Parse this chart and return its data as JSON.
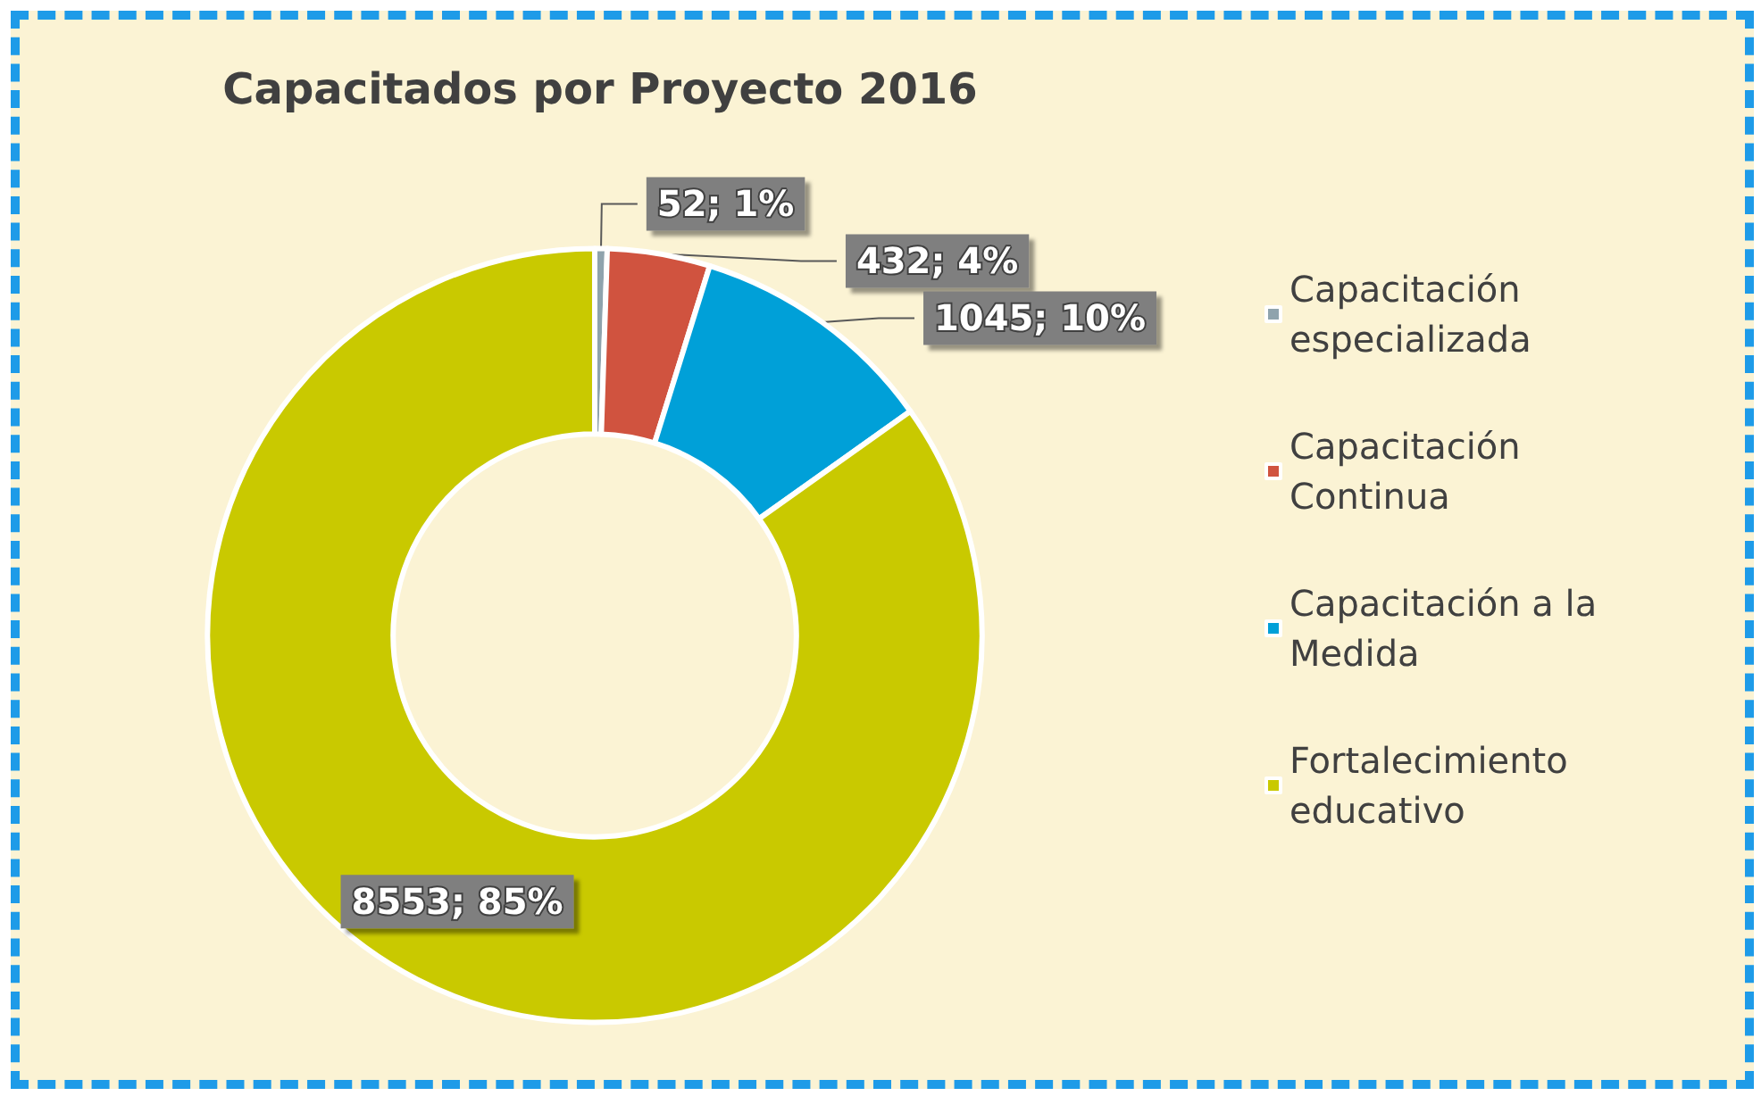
{
  "chart_data": {
    "type": "donut",
    "title": "Capacitados por Proyecto 2016",
    "categories": [
      "Capacitación especializada",
      "Capacitación Continua",
      "Capacitación a la Medida",
      "Fortalecimiento educativo"
    ],
    "values": [
      52,
      432,
      1045,
      8553
    ],
    "colors": [
      "#8fa3ad",
      "#d0533f",
      "#00a0d8",
      "#c9c900"
    ],
    "value_labels": [
      "52; 1%",
      "432; 4%",
      "1045; 10%",
      "8553; 85%"
    ],
    "legend": "right"
  }
}
